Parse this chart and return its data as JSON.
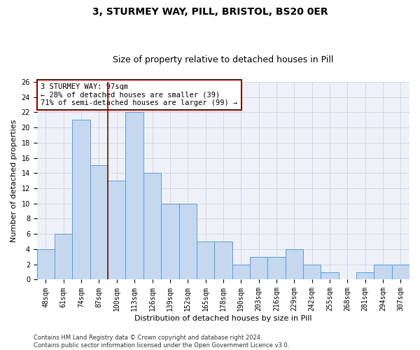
{
  "title": "3, STURMEY WAY, PILL, BRISTOL, BS20 0ER",
  "subtitle": "Size of property relative to detached houses in Pill",
  "xlabel": "Distribution of detached houses by size in Pill",
  "ylabel": "Number of detached properties",
  "footnote": "Contains HM Land Registry data © Crown copyright and database right 2024.\nContains public sector information licensed under the Open Government Licence v3.0.",
  "categories": [
    "48sqm",
    "61sqm",
    "74sqm",
    "87sqm",
    "100sqm",
    "113sqm",
    "126sqm",
    "139sqm",
    "152sqm",
    "165sqm",
    "178sqm",
    "190sqm",
    "203sqm",
    "216sqm",
    "229sqm",
    "242sqm",
    "255sqm",
    "268sqm",
    "281sqm",
    "294sqm",
    "307sqm"
  ],
  "values": [
    4,
    6,
    21,
    15,
    13,
    22,
    14,
    10,
    10,
    5,
    5,
    2,
    3,
    3,
    4,
    2,
    1,
    0,
    1,
    2,
    2
  ],
  "bar_color": "#c5d8f0",
  "bar_edge_color": "#5b9bd5",
  "vline_x": 3.5,
  "vline_color": "#8b0000",
  "annotation_text": "3 STURMEY WAY: 97sqm\n← 28% of detached houses are smaller (39)\n71% of semi-detached houses are larger (99) →",
  "annotation_box_color": "#8b0000",
  "ylim": [
    0,
    26
  ],
  "yticks": [
    0,
    2,
    4,
    6,
    8,
    10,
    12,
    14,
    16,
    18,
    20,
    22,
    24,
    26
  ],
  "grid_color": "#d0d8e8",
  "background_color": "#eef2f8",
  "title_fontsize": 10,
  "subtitle_fontsize": 9,
  "axis_label_fontsize": 8,
  "tick_fontsize": 7,
  "annotation_fontsize": 7.5,
  "footnote_fontsize": 6
}
